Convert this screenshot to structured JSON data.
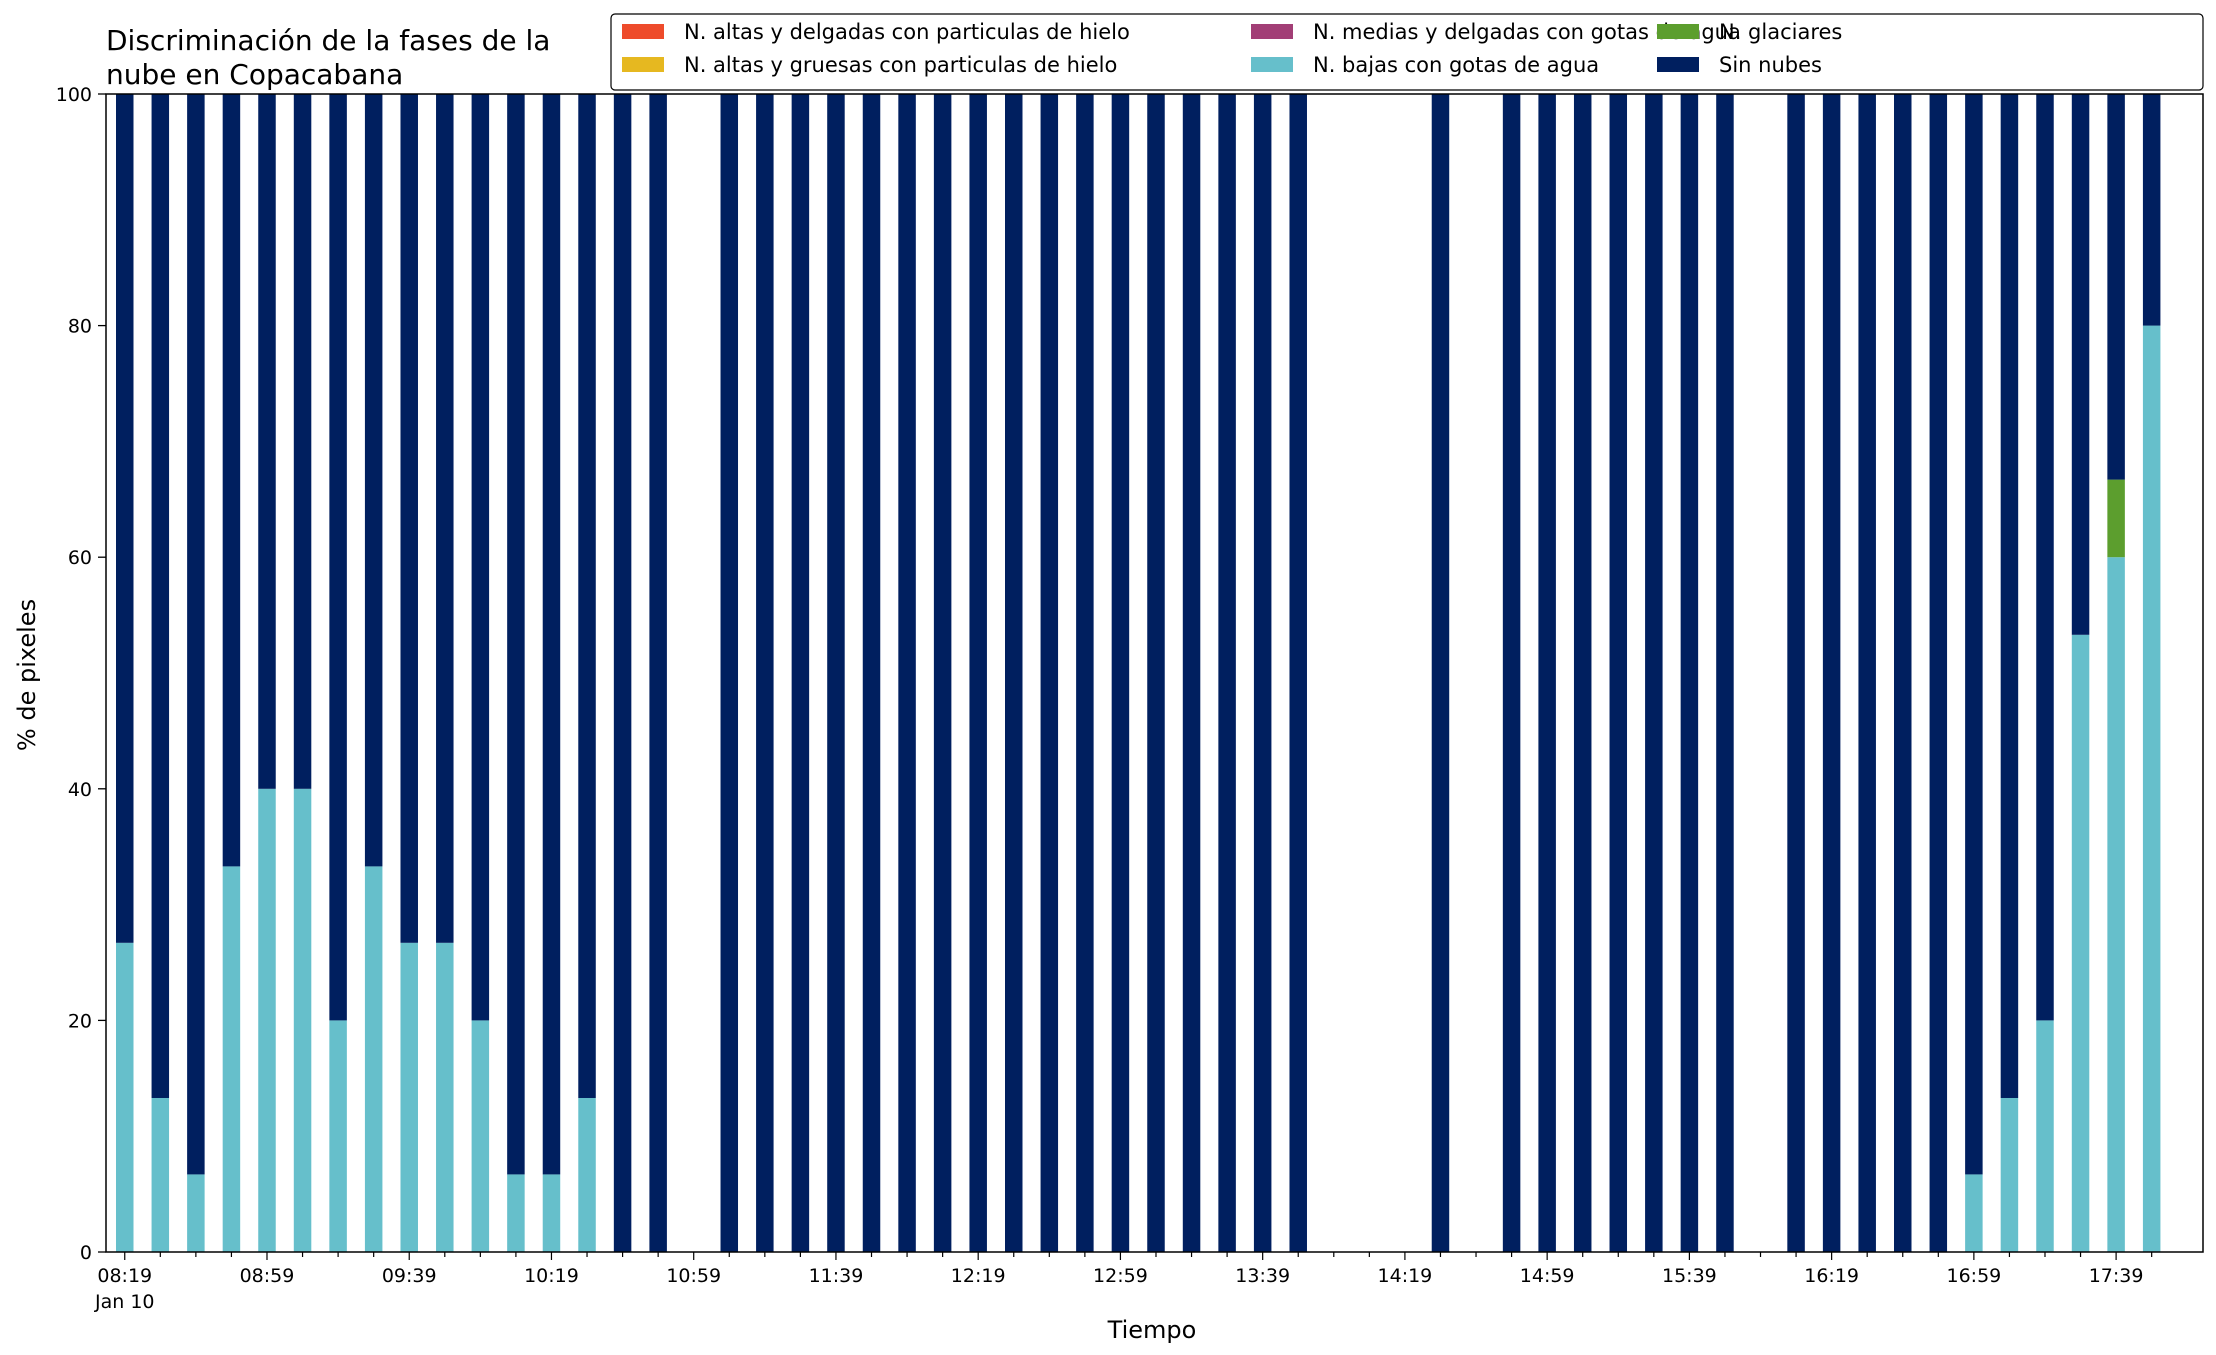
{
  "chart_data": {
    "type": "bar",
    "stacked": true,
    "title": [
      "Discriminación de la fases de la",
      "nube en Copacabana"
    ],
    "xlabel": "Tiempo",
    "ylabel": "% de pixeles",
    "ylim": [
      0,
      100
    ],
    "yticks": [
      "0",
      "20",
      "40",
      "60",
      "80",
      "100"
    ],
    "xtick_labels": [
      "08:19",
      "08:59",
      "09:39",
      "10:19",
      "10:59",
      "11:39",
      "12:19",
      "12:59",
      "13:39",
      "14:19",
      "14:59",
      "15:39",
      "16:19",
      "16:59",
      "17:39"
    ],
    "xtick_sublabel": "Jan 10",
    "legend_position": "top-right",
    "legend": [
      {
        "name": "N. altas y delgadas con particulas de hielo",
        "color": "#ee4b2b"
      },
      {
        "name": "N. altas y gruesas con particulas de hielo",
        "color": "#e6b820"
      },
      {
        "name": "N. medias y delgadas con gotas de agua",
        "color": "#a23e76"
      },
      {
        "name": "N. bajas con gotas de agua",
        "color": "#66bfcb"
      },
      {
        "name": "N. glaciares",
        "color": "#5c9e2e"
      },
      {
        "name": "Sin nubes",
        "color": "#001f5f"
      }
    ],
    "categories": [
      "08:19",
      "08:29",
      "08:39",
      "08:49",
      "08:59",
      "09:09",
      "09:19",
      "09:29",
      "09:39",
      "09:49",
      "09:59",
      "10:09",
      "10:19",
      "10:29",
      "10:39",
      "10:49",
      "10:59",
      "11:09",
      "11:19",
      "11:29",
      "11:39",
      "11:49",
      "11:59",
      "12:09",
      "12:19",
      "12:29",
      "12:39",
      "12:49",
      "12:59",
      "13:09",
      "13:19",
      "13:29",
      "13:39",
      "13:49",
      "13:59",
      "14:09",
      "14:19",
      "14:29",
      "14:39",
      "14:49",
      "14:59",
      "15:09",
      "15:19",
      "15:29",
      "15:39",
      "15:49",
      "15:59",
      "16:09",
      "16:19",
      "16:29",
      "16:39",
      "16:49",
      "16:59",
      "17:09",
      "17:19",
      "17:29",
      "17:39",
      "17:49"
    ],
    "series": [
      {
        "name": "N. altas y delgadas con particulas de hielo",
        "color": "#ee4b2b",
        "values": [
          0,
          0,
          0,
          0,
          0,
          0,
          0,
          0,
          0,
          0,
          0,
          0,
          0,
          0,
          0,
          0,
          null,
          0,
          0,
          0,
          0,
          0,
          0,
          0,
          0,
          0,
          0,
          0,
          0,
          0,
          0,
          0,
          0,
          0,
          null,
          null,
          null,
          0,
          null,
          0,
          0,
          0,
          0,
          0,
          0,
          0,
          null,
          0,
          0,
          0,
          0,
          0,
          0,
          0,
          0,
          0,
          0,
          0
        ]
      },
      {
        "name": "N. altas y gruesas con particulas de hielo",
        "color": "#e6b820",
        "values": [
          0,
          0,
          0,
          0,
          0,
          0,
          0,
          0,
          0,
          0,
          0,
          0,
          0,
          0,
          0,
          0,
          null,
          0,
          0,
          0,
          0,
          0,
          0,
          0,
          0,
          0,
          0,
          0,
          0,
          0,
          0,
          0,
          0,
          0,
          null,
          null,
          null,
          0,
          null,
          0,
          0,
          0,
          0,
          0,
          0,
          0,
          null,
          0,
          0,
          0,
          0,
          0,
          0,
          0,
          0,
          0,
          0,
          0
        ]
      },
      {
        "name": "N. medias y delgadas con gotas de agua",
        "color": "#a23e76",
        "values": [
          0,
          0,
          0,
          0,
          0,
          0,
          0,
          0,
          0,
          0,
          0,
          0,
          0,
          0,
          0,
          0,
          null,
          0,
          0,
          0,
          0,
          0,
          0,
          0,
          0,
          0,
          0,
          0,
          0,
          0,
          0,
          0,
          0,
          0,
          null,
          null,
          null,
          0,
          null,
          0,
          0,
          0,
          0,
          0,
          0,
          0,
          null,
          0,
          0,
          0,
          0,
          0,
          0,
          0,
          0,
          0,
          0,
          0
        ]
      },
      {
        "name": "N. bajas con gotas de agua",
        "color": "#66bfcb",
        "values": [
          26.7,
          13.3,
          6.7,
          33.3,
          40,
          40,
          20,
          33.3,
          26.7,
          26.7,
          20,
          6.7,
          6.7,
          13.3,
          0,
          0,
          null,
          0,
          0,
          0,
          0,
          0,
          0,
          0,
          0,
          0,
          0,
          0,
          0,
          0,
          0,
          0,
          0,
          0,
          null,
          null,
          null,
          0,
          null,
          0,
          0,
          0,
          0,
          0,
          0,
          0,
          null,
          0,
          0,
          0,
          0,
          0,
          6.7,
          13.3,
          20,
          53.3,
          60,
          80
        ]
      },
      {
        "name": "N. glaciares",
        "color": "#5c9e2e",
        "values": [
          0,
          0,
          0,
          0,
          0,
          0,
          0,
          0,
          0,
          0,
          0,
          0,
          0,
          0,
          0,
          0,
          null,
          0,
          0,
          0,
          0,
          0,
          0,
          0,
          0,
          0,
          0,
          0,
          0,
          0,
          0,
          0,
          0,
          0,
          null,
          null,
          null,
          0,
          null,
          0,
          0,
          0,
          0,
          0,
          0,
          0,
          null,
          0,
          0,
          0,
          0,
          0,
          0,
          0,
          0,
          0,
          6.7,
          0
        ]
      },
      {
        "name": "Sin nubes",
        "color": "#001f5f",
        "values": [
          73.3,
          86.7,
          93.3,
          66.7,
          60,
          60,
          80,
          66.7,
          73.3,
          73.3,
          80,
          93.3,
          93.3,
          86.7,
          100,
          100,
          null,
          100,
          100,
          100,
          100,
          100,
          100,
          100,
          100,
          100,
          100,
          100,
          100,
          100,
          100,
          100,
          100,
          100,
          null,
          null,
          null,
          100,
          null,
          100,
          100,
          100,
          100,
          100,
          100,
          100,
          null,
          100,
          100,
          100,
          100,
          100,
          93.3,
          86.7,
          80,
          46.7,
          33.3,
          20
        ]
      }
    ]
  }
}
